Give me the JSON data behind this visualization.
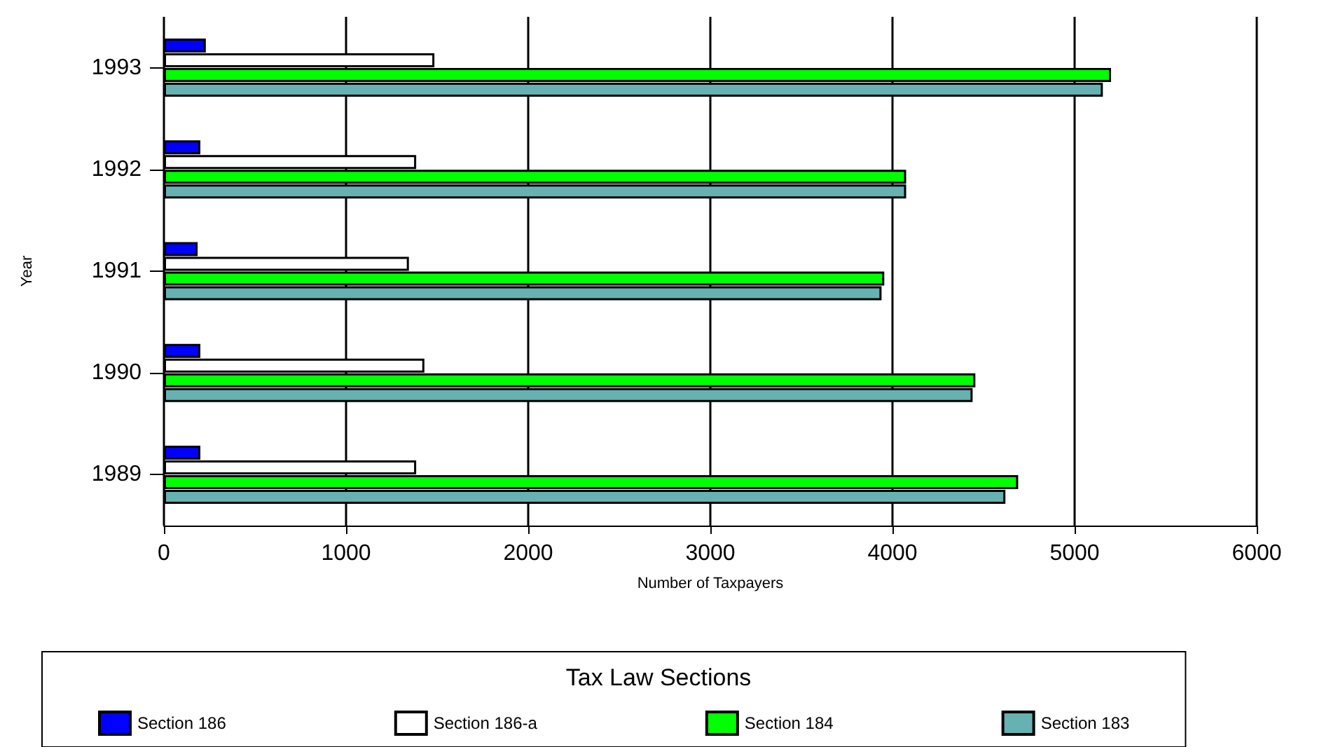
{
  "chart_data": {
    "type": "bar",
    "orientation": "horizontal",
    "xlabel": "Number of Taxpayers",
    "ylabel": "Year",
    "legend_title": "Tax Law Sections",
    "categories": [
      "1993",
      "1992",
      "1991",
      "1990",
      "1989"
    ],
    "series": [
      {
        "name": "Section 186",
        "color": "#0000ff",
        "values": [
          230,
          200,
          185,
          200,
          200
        ]
      },
      {
        "name": "Section 186-a",
        "color": "#ffffff",
        "values": [
          1485,
          1385,
          1345,
          1430,
          1385
        ]
      },
      {
        "name": "Section 184",
        "color": "#00ff00",
        "values": [
          5200,
          4075,
          3955,
          4455,
          4690
        ]
      },
      {
        "name": "Section 183",
        "color": "#66b2b2",
        "values": [
          5155,
          4075,
          3940,
          4440,
          4620
        ]
      }
    ],
    "xlim": [
      0,
      6000
    ],
    "xticks": [
      0,
      1000,
      2000,
      3000,
      4000,
      5000,
      6000
    ],
    "grid": "x",
    "legend": "bottom"
  }
}
